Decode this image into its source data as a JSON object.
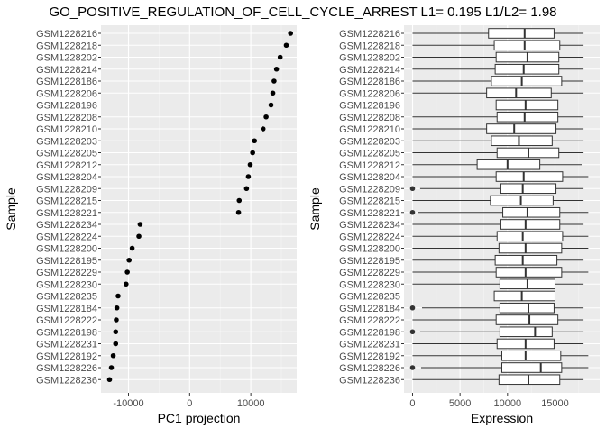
{
  "chart_data": {
    "title": "GO_POSITIVE_REGULATION_OF_CELL_CYCLE_ARREST L1= 0.195 L1/L2= 1.98",
    "samples": [
      "GSM1228216",
      "GSM1228218",
      "GSM1228202",
      "GSM1228214",
      "GSM1228186",
      "GSM1228206",
      "GSM1228196",
      "GSM1228208",
      "GSM1228210",
      "GSM1228203",
      "GSM1228205",
      "GSM1228212",
      "GSM1228204",
      "GSM1228209",
      "GSM1228215",
      "GSM1228221",
      "GSM1228234",
      "GSM1228224",
      "GSM1228200",
      "GSM1228195",
      "GSM1228229",
      "GSM1228230",
      "GSM1228235",
      "GSM1228184",
      "GSM1228222",
      "GSM1228198",
      "GSM1228231",
      "GSM1228192",
      "GSM1228226",
      "GSM1228236"
    ],
    "left": {
      "type": "scatter",
      "xlabel": "PC1 projection",
      "ylabel": "Sample",
      "xlim": [
        -14500,
        17500
      ],
      "xticks": [
        -10000,
        0,
        10000
      ],
      "xtick_labels": [
        "-10000",
        "0",
        "10000"
      ],
      "values": [
        16500,
        15800,
        14800,
        14200,
        13800,
        13600,
        13300,
        12500,
        12000,
        10600,
        10300,
        9900,
        9600,
        9300,
        8100,
        8000,
        -8100,
        -8300,
        -9400,
        -9900,
        -10200,
        -10400,
        -11700,
        -11900,
        -12000,
        -12100,
        -12100,
        -12500,
        -12800,
        -13100
      ]
    },
    "right": {
      "type": "boxplot",
      "xlabel": "Expression",
      "ylabel": "Sample",
      "xlim": [
        -900,
        19700
      ],
      "xticks": [
        0,
        5000,
        10000,
        15000
      ],
      "xtick_labels": [
        "0",
        "5000",
        "10000",
        "15000"
      ],
      "boxes": [
        {
          "wmin": 0,
          "q1": 8000,
          "med": 11800,
          "q3": 14900,
          "wmax": 18000,
          "outliers": []
        },
        {
          "wmin": 0,
          "q1": 8600,
          "med": 11800,
          "q3": 15500,
          "wmax": 18000,
          "outliers": []
        },
        {
          "wmin": 0,
          "q1": 8800,
          "med": 12100,
          "q3": 15400,
          "wmax": 18000,
          "outliers": []
        },
        {
          "wmin": 0,
          "q1": 8700,
          "med": 11700,
          "q3": 15400,
          "wmax": 18000,
          "outliers": []
        },
        {
          "wmin": 0,
          "q1": 8300,
          "med": 11500,
          "q3": 15700,
          "wmax": 18000,
          "outliers": []
        },
        {
          "wmin": 0,
          "q1": 7800,
          "med": 10900,
          "q3": 14600,
          "wmax": 18000,
          "outliers": []
        },
        {
          "wmin": 0,
          "q1": 8800,
          "med": 11900,
          "q3": 15300,
          "wmax": 18000,
          "outliers": []
        },
        {
          "wmin": 0,
          "q1": 8900,
          "med": 11800,
          "q3": 15300,
          "wmax": 18000,
          "outliers": []
        },
        {
          "wmin": 0,
          "q1": 7800,
          "med": 10700,
          "q3": 15100,
          "wmax": 18000,
          "outliers": []
        },
        {
          "wmin": 0,
          "q1": 8300,
          "med": 11200,
          "q3": 14700,
          "wmax": 18000,
          "outliers": []
        },
        {
          "wmin": 0,
          "q1": 8900,
          "med": 12200,
          "q3": 15400,
          "wmax": 18000,
          "outliers": []
        },
        {
          "wmin": 0,
          "q1": 6800,
          "med": 10000,
          "q3": 13400,
          "wmax": 17800,
          "outliers": []
        },
        {
          "wmin": 0,
          "q1": 8800,
          "med": 11700,
          "q3": 15800,
          "wmax": 18500,
          "outliers": []
        },
        {
          "wmin": 800,
          "q1": 9300,
          "med": 11600,
          "q3": 15100,
          "wmax": 18000,
          "outliers": [
            0
          ]
        },
        {
          "wmin": 0,
          "q1": 8200,
          "med": 11400,
          "q3": 14800,
          "wmax": 18000,
          "outliers": []
        },
        {
          "wmin": 600,
          "q1": 9500,
          "med": 12100,
          "q3": 15500,
          "wmax": 18500,
          "outliers": [
            0
          ]
        },
        {
          "wmin": 0,
          "q1": 9300,
          "med": 11900,
          "q3": 15500,
          "wmax": 18000,
          "outliers": []
        },
        {
          "wmin": 0,
          "q1": 8900,
          "med": 11600,
          "q3": 15800,
          "wmax": 18500,
          "outliers": []
        },
        {
          "wmin": 0,
          "q1": 9100,
          "med": 11900,
          "q3": 15700,
          "wmax": 18500,
          "outliers": []
        },
        {
          "wmin": 0,
          "q1": 8700,
          "med": 11600,
          "q3": 15200,
          "wmax": 18000,
          "outliers": []
        },
        {
          "wmin": 0,
          "q1": 8800,
          "med": 11900,
          "q3": 15700,
          "wmax": 18500,
          "outliers": []
        },
        {
          "wmin": 0,
          "q1": 9200,
          "med": 12100,
          "q3": 15000,
          "wmax": 18000,
          "outliers": []
        },
        {
          "wmin": 0,
          "q1": 8600,
          "med": 11500,
          "q3": 15000,
          "wmax": 18000,
          "outliers": []
        },
        {
          "wmin": 1000,
          "q1": 9200,
          "med": 12200,
          "q3": 14900,
          "wmax": 18000,
          "outliers": [
            0
          ]
        },
        {
          "wmin": 0,
          "q1": 8800,
          "med": 12300,
          "q3": 15300,
          "wmax": 18000,
          "outliers": []
        },
        {
          "wmin": 800,
          "q1": 9200,
          "med": 12900,
          "q3": 14700,
          "wmax": 18000,
          "outliers": [
            0
          ]
        },
        {
          "wmin": 0,
          "q1": 8900,
          "med": 11900,
          "q3": 14900,
          "wmax": 18000,
          "outliers": []
        },
        {
          "wmin": 0,
          "q1": 9400,
          "med": 11900,
          "q3": 15600,
          "wmax": 18500,
          "outliers": []
        },
        {
          "wmin": 900,
          "q1": 9400,
          "med": 13500,
          "q3": 15700,
          "wmax": 18500,
          "outliers": [
            0
          ]
        },
        {
          "wmin": 0,
          "q1": 9100,
          "med": 12200,
          "q3": 15500,
          "wmax": 18000,
          "outliers": []
        }
      ]
    }
  }
}
